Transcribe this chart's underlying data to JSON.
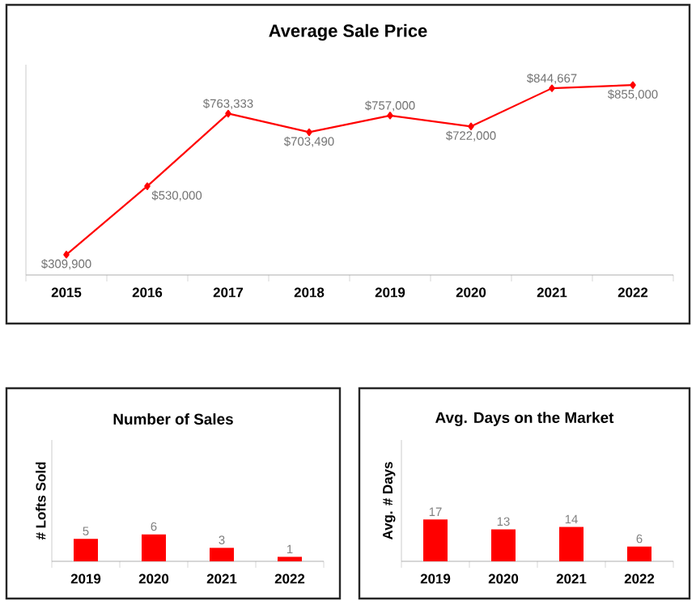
{
  "chart_data": [
    {
      "type": "line",
      "title": "Average Sale Price",
      "categories": [
        "2015",
        "2016",
        "2017",
        "2018",
        "2019",
        "2020",
        "2021",
        "2022"
      ],
      "values": [
        309900,
        530000,
        763333,
        703490,
        757000,
        722000,
        844667,
        855000
      ],
      "value_labels": [
        "$309,900",
        "$530,000",
        "$763,333",
        "$703,490",
        "$757,000",
        "$722,000",
        "$844,667",
        "$855,000"
      ],
      "color": "#ff0000",
      "marker": "diamond",
      "tick_labels": "x"
    },
    {
      "type": "bar",
      "title": "Number of Sales",
      "ylabel": "# Lofts Sold",
      "categories": [
        "2019",
        "2020",
        "2021",
        "2022"
      ],
      "values": [
        5,
        6,
        3,
        1
      ],
      "color": "#ff0000",
      "data_labels": true,
      "tick_labels": "x"
    },
    {
      "type": "bar",
      "title": "Avg. Days on the Market",
      "ylabel": "Avg. # Days",
      "categories": [
        "2019",
        "2020",
        "2021",
        "2022"
      ],
      "values": [
        17,
        13,
        14,
        6
      ],
      "color": "#ff0000",
      "data_labels": true,
      "tick_labels": "x"
    }
  ]
}
